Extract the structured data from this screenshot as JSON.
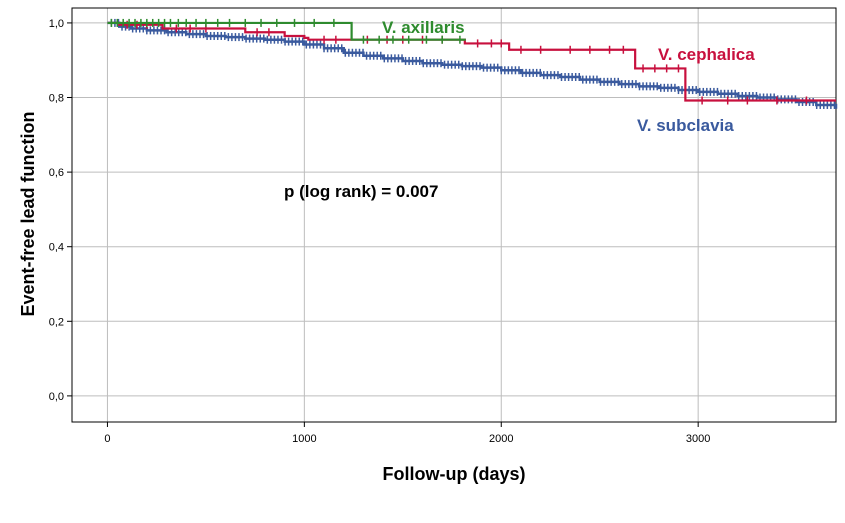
{
  "chart_data": {
    "type": "line",
    "subtype": "kaplan-meier",
    "xlabel": "Follow-up (days)",
    "ylabel": "Event-free lead function",
    "xlim": [
      -180,
      3700
    ],
    "ylim": [
      -0.07,
      1.04
    ],
    "x_ticks": [
      0,
      1000,
      2000,
      3000
    ],
    "x_tick_labels": [
      "0",
      "1000",
      "2000",
      "3000"
    ],
    "y_ticks": [
      0.0,
      0.2,
      0.4,
      0.6,
      0.8,
      1.0
    ],
    "y_tick_labels": [
      "0,0",
      "0,2",
      "0,4",
      "0,6",
      "0,8",
      "1,0"
    ],
    "grid": true,
    "annotation": "p (log rank) = 0.007",
    "series": [
      {
        "name": "V. axillaris",
        "color": "#2e8b2e",
        "x": [
          0,
          1240,
          1240,
          1820
        ],
        "y": [
          1.0,
          1.0,
          0.955,
          0.955
        ],
        "censor_x": [
          20,
          50,
          80,
          110,
          140,
          170,
          200,
          230,
          260,
          290,
          320,
          360,
          400,
          450,
          500,
          560,
          620,
          700,
          780,
          860,
          950,
          1050,
          1150,
          1300,
          1380,
          1450,
          1530,
          1620,
          1700,
          1790
        ]
      },
      {
        "name": "V. cephalica",
        "color": "#c8103e",
        "x": [
          0,
          60,
          60,
          280,
          280,
          700,
          700,
          900,
          900,
          1000,
          1000,
          1020,
          1020,
          1815,
          1815,
          2040,
          2040,
          2680,
          2680,
          2935,
          2935,
          3700
        ],
        "y": [
          1.0,
          1.0,
          0.995,
          0.995,
          0.985,
          0.985,
          0.975,
          0.975,
          0.965,
          0.965,
          0.96,
          0.96,
          0.955,
          0.955,
          0.945,
          0.945,
          0.928,
          0.928,
          0.878,
          0.878,
          0.792,
          0.792
        ],
        "censor_x": [
          100,
          150,
          200,
          350,
          420,
          500,
          760,
          820,
          1100,
          1160,
          1320,
          1420,
          1500,
          1600,
          1700,
          1880,
          1950,
          2000,
          2100,
          2200,
          2350,
          2450,
          2550,
          2620,
          2720,
          2780,
          2840,
          2900,
          3020,
          3150,
          3250,
          3400,
          3550
        ]
      },
      {
        "name": "V. subclavia",
        "color": "#3a5a9e",
        "x": [
          0,
          60,
          120,
          200,
          300,
          400,
          500,
          600,
          700,
          800,
          900,
          1000,
          1100,
          1200,
          1300,
          1400,
          1500,
          1600,
          1700,
          1800,
          1900,
          2000,
          2100,
          2200,
          2300,
          2400,
          2500,
          2600,
          2700,
          2800,
          2900,
          3000,
          3100,
          3200,
          3300,
          3400,
          3500,
          3600,
          3700
        ],
        "y": [
          1.0,
          0.99,
          0.985,
          0.98,
          0.975,
          0.97,
          0.965,
          0.962,
          0.958,
          0.955,
          0.95,
          0.942,
          0.932,
          0.92,
          0.912,
          0.905,
          0.898,
          0.892,
          0.888,
          0.884,
          0.88,
          0.873,
          0.866,
          0.86,
          0.855,
          0.848,
          0.842,
          0.836,
          0.83,
          0.826,
          0.82,
          0.815,
          0.81,
          0.804,
          0.8,
          0.795,
          0.788,
          0.78,
          0.77
        ]
      }
    ]
  }
}
